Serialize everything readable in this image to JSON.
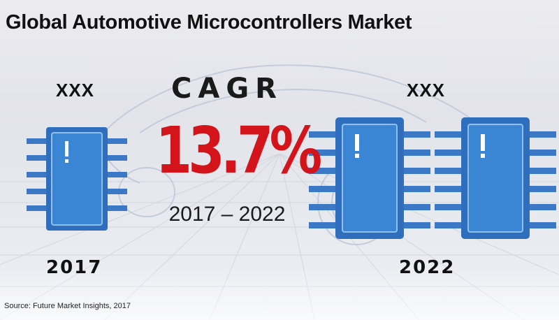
{
  "title": "Global Automotive Microcontrollers Market",
  "left_block": {
    "value_label": "XXX",
    "year": "2017"
  },
  "center_block": {
    "heading": "CAGR",
    "rate": "13.7%",
    "period": "2017 – 2022"
  },
  "right_block": {
    "value_label": "XXX",
    "year": "2022"
  },
  "source": "Source: Future Market Insights, 2017",
  "icons": [
    "microchip-icon",
    "car-outline-background"
  ],
  "colors": {
    "rate_red": "#d4141b",
    "chip_blue": "#3b78c6",
    "chip_fill": "#2f6dbd",
    "text_dark": "#111111"
  }
}
